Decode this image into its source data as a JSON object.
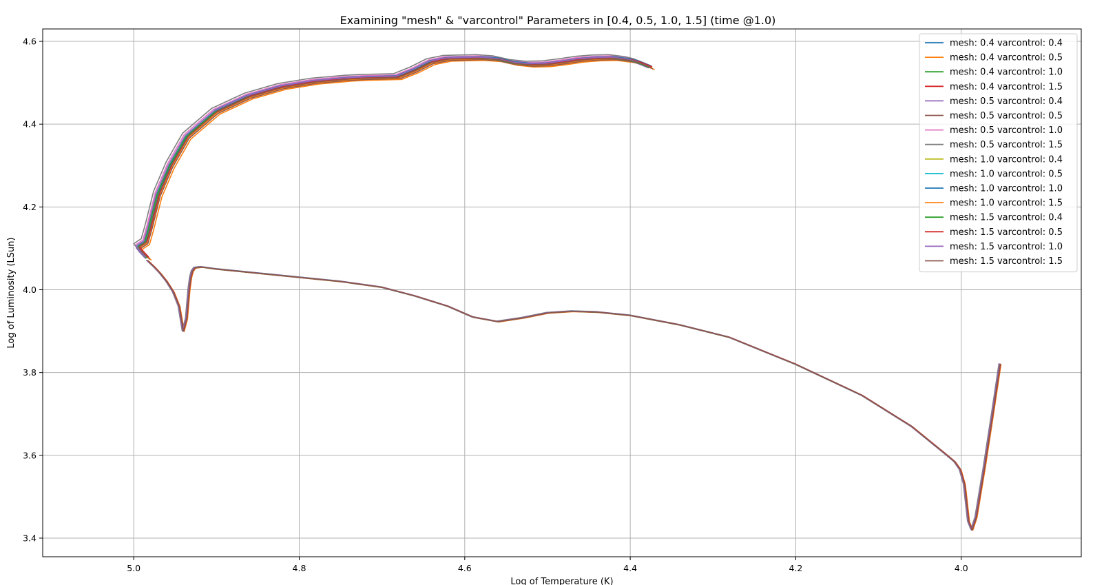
{
  "chart_data": {
    "type": "line",
    "title": "Examining \"mesh\" & \"varcontrol\" Parameters in [0.4, 0.5, 1.0, 1.5] (time @1.0)",
    "xlabel": "Log of Temperature (K)",
    "ylabel": "Log of Luminosity (LSun)",
    "xlim": [
      5.11,
      3.855
    ],
    "ylim": [
      3.355,
      4.63
    ],
    "x_inverted": true,
    "grid": true,
    "legend_position": "top-right",
    "xticks": [
      5.0,
      4.8,
      4.6,
      4.4,
      4.2,
      4.0
    ],
    "xtick_labels": [
      "5.0",
      "4.8",
      "4.6",
      "4.4",
      "4.2",
      "4.0"
    ],
    "yticks": [
      3.4,
      3.6,
      3.8,
      4.0,
      4.2,
      4.4,
      4.6
    ],
    "ytick_labels": [
      "3.4",
      "3.6",
      "3.8",
      "4.0",
      "4.2",
      "4.4",
      "4.6"
    ],
    "shared_track": {
      "x": [
        3.953,
        3.962,
        3.972,
        3.982,
        3.987,
        3.991,
        3.996,
        4.001,
        4.008,
        4.02,
        4.06,
        4.12,
        4.2,
        4.28,
        4.34,
        4.4,
        4.44,
        4.47,
        4.5,
        4.53,
        4.56,
        4.59,
        4.62,
        4.66,
        4.7,
        4.75,
        4.8,
        4.85,
        4.9,
        4.918,
        4.926,
        4.929,
        4.931,
        4.933,
        4.936,
        4.94,
        4.945,
        4.952,
        4.96,
        4.968,
        4.975,
        4.983
      ],
      "y": [
        3.82,
        3.7,
        3.57,
        3.45,
        3.42,
        3.44,
        3.53,
        3.565,
        3.585,
        3.605,
        3.67,
        3.745,
        3.82,
        3.885,
        3.915,
        3.938,
        3.946,
        3.948,
        3.944,
        3.932,
        3.923,
        3.934,
        3.96,
        3.985,
        4.006,
        4.02,
        4.03,
        4.04,
        4.05,
        4.055,
        4.053,
        4.045,
        4.03,
        4.0,
        3.93,
        3.9,
        3.96,
        3.995,
        4.02,
        4.04,
        4.055,
        4.07
      ]
    },
    "upper_track": {
      "x": [
        4.983,
        4.99,
        4.994,
        4.992,
        4.985,
        4.98,
        4.97,
        4.955,
        4.935,
        4.9,
        4.86,
        4.82,
        4.78,
        4.74,
        4.72,
        4.7,
        4.68,
        4.66,
        4.64,
        4.62,
        4.6,
        4.58,
        4.56,
        4.54,
        4.52,
        4.5,
        4.48,
        4.46,
        4.44,
        4.42,
        4.4,
        4.39,
        4.375
      ],
      "y": [
        4.078,
        4.093,
        4.103,
        4.106,
        4.115,
        4.15,
        4.23,
        4.3,
        4.37,
        4.43,
        4.467,
        4.49,
        4.503,
        4.51,
        4.512,
        4.513,
        4.514,
        4.53,
        4.55,
        4.558,
        4.559,
        4.56,
        4.557,
        4.548,
        4.544,
        4.545,
        4.55,
        4.556,
        4.559,
        4.56,
        4.555,
        4.55,
        4.538
      ]
    },
    "series": [
      {
        "name": "mesh: 0.4 varcontrol: 0.4",
        "color": "#1f77b4",
        "dx": 0.002,
        "dy": 0.004
      },
      {
        "name": "mesh: 0.4 varcontrol: 0.5",
        "color": "#ff7f0e",
        "dx": -0.004,
        "dy": -0.006
      },
      {
        "name": "mesh: 0.4 varcontrol: 1.0",
        "color": "#2ca02c",
        "dx": 0.001,
        "dy": 0.002
      },
      {
        "name": "mesh: 0.4 varcontrol: 1.5",
        "color": "#d62728",
        "dx": 0.0,
        "dy": 0.0
      },
      {
        "name": "mesh: 0.5 varcontrol: 0.4",
        "color": "#9467bd",
        "dx": 0.003,
        "dy": -0.002
      },
      {
        "name": "mesh: 0.5 varcontrol: 0.5",
        "color": "#8c564b",
        "dx": -0.002,
        "dy": -0.004
      },
      {
        "name": "mesh: 0.5 varcontrol: 1.0",
        "color": "#e377c2",
        "dx": 0.004,
        "dy": 0.005
      },
      {
        "name": "mesh: 0.5 varcontrol: 1.5",
        "color": "#7f7f7f",
        "dx": 0.006,
        "dy": 0.008
      },
      {
        "name": "mesh: 1.0 varcontrol: 0.4",
        "color": "#bcbd22",
        "dx": 0.001,
        "dy": 0.0
      },
      {
        "name": "mesh: 1.0 varcontrol: 0.5",
        "color": "#17becf",
        "dx": 0.002,
        "dy": 0.001
      },
      {
        "name": "mesh: 1.0 varcontrol: 1.0",
        "color": "#1f77b4",
        "dx": 0.0,
        "dy": 0.003
      },
      {
        "name": "mesh: 1.0 varcontrol: 1.5",
        "color": "#ff7f0e",
        "dx": -0.001,
        "dy": -0.002
      },
      {
        "name": "mesh: 1.5 varcontrol: 0.4",
        "color": "#2ca02c",
        "dx": 0.002,
        "dy": -0.001
      },
      {
        "name": "mesh: 1.5 varcontrol: 0.5",
        "color": "#d62728",
        "dx": -0.001,
        "dy": 0.001
      },
      {
        "name": "mesh: 1.5 varcontrol: 1.0",
        "color": "#9467bd",
        "dx": 0.003,
        "dy": 0.002
      },
      {
        "name": "mesh: 1.5 varcontrol: 1.5",
        "color": "#8c564b",
        "dx": 0.0,
        "dy": -0.001
      }
    ]
  }
}
